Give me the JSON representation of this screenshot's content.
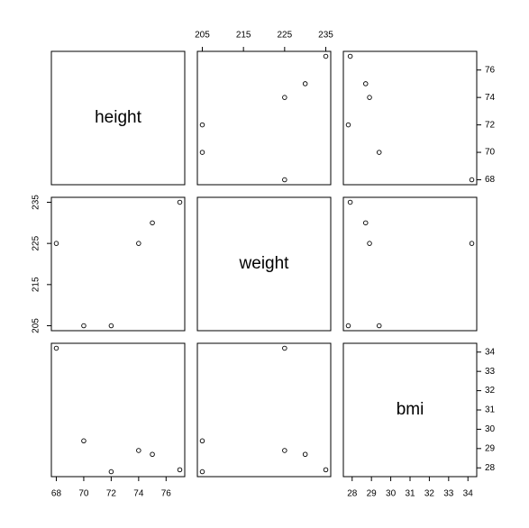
{
  "chart_data": {
    "type": "pairs",
    "variables": [
      {
        "name": "height",
        "values": [
          68,
          70,
          72,
          74,
          75,
          77
        ],
        "lim": [
          67.64,
          77.36
        ],
        "ticks": [
          68,
          70,
          72,
          74,
          76
        ]
      },
      {
        "name": "weight",
        "values": [
          225,
          205,
          205,
          225,
          230,
          235
        ],
        "lim": [
          203.8,
          236.2
        ],
        "ticks": [
          205,
          215,
          225,
          235
        ]
      },
      {
        "name": "bmi",
        "values": [
          34.2,
          29.4,
          27.8,
          28.9,
          28.7,
          27.9
        ],
        "lim": [
          27.544,
          34.456
        ],
        "ticks": [
          28,
          29,
          30,
          31,
          32,
          33,
          34
        ]
      }
    ]
  }
}
